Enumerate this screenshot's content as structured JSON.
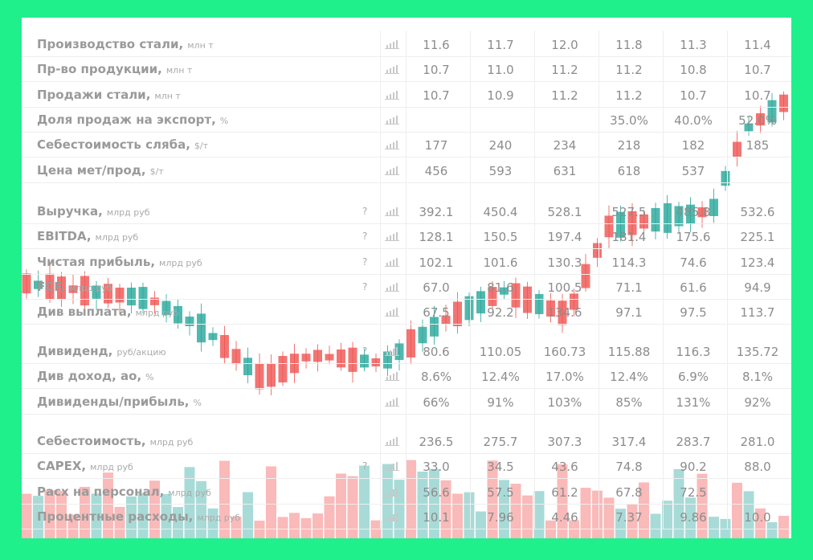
{
  "groups": [
    {
      "rows": [
        {
          "label": "Производство стали,",
          "unit": "млн т",
          "values": [
            "11.6",
            "11.7",
            "12.0",
            "11.8",
            "11.3",
            "11.4"
          ]
        },
        {
          "label": "Пр-во продукции,",
          "unit": "млн т",
          "values": [
            "10.7",
            "11.0",
            "11.2",
            "11.2",
            "10.8",
            "10.7"
          ]
        },
        {
          "label": "Продажи стали,",
          "unit": "млн т",
          "values": [
            "10.7",
            "10.9",
            "11.2",
            "11.2",
            "10.7",
            "10.7"
          ]
        },
        {
          "label": "Доля продаж на экспорт,",
          "unit": "%",
          "values": [
            null,
            null,
            null,
            "35.0%",
            "40.0%",
            "52.0%"
          ]
        },
        {
          "label": "Себестоимость сляба,",
          "unit": "$/т",
          "values": [
            "177",
            "240",
            "234",
            "218",
            "182",
            "185"
          ]
        },
        {
          "label": "Цена мет/прод,",
          "unit": "$/т",
          "values": [
            "456",
            "593",
            "631",
            "618",
            "537",
            null
          ]
        }
      ]
    },
    {
      "rows": [
        {
          "label": "Выручка,",
          "unit": "млрд руб",
          "help": "?",
          "values": [
            "392.1",
            "450.4",
            "528.1",
            "527.5",
            "485.8",
            "532.6"
          ]
        },
        {
          "label": "EBITDA,",
          "unit": "млрд руб",
          "help": "?",
          "values": [
            "128.1",
            "150.5",
            "197.4",
            "181.4",
            "175.6",
            "225.1"
          ]
        },
        {
          "label": "Чистая прибыль,",
          "unit": "млрд руб",
          "help": "?",
          "values": [
            "102.1",
            "101.6",
            "130.3",
            "114.3",
            "74.6",
            "123.4"
          ]
        },
        {
          "label": "FCF,",
          "unit": "млрд руб",
          "help": "?",
          "values": [
            "67.0",
            "81.6",
            "100.5",
            "71.1",
            "61.6",
            "94.9"
          ]
        },
        {
          "label": "Див выплата,",
          "unit": "млрд руб",
          "values": [
            "67.5",
            "92.2",
            "134.6",
            "97.1",
            "97.5",
            "113.7"
          ]
        }
      ]
    },
    {
      "rows": [
        {
          "label": "Дивиденд,",
          "unit": "руб/акцию",
          "help": "?",
          "values": [
            "80.6",
            "110.05",
            "160.73",
            "115.88",
            "116.3",
            "135.72"
          ]
        },
        {
          "label": "Див доход, ао,",
          "unit": "%",
          "values": [
            "8.6%",
            "12.4%",
            "17.0%",
            "12.4%",
            "6.9%",
            "8.1%"
          ]
        },
        {
          "label": "Дивиденды/прибыль,",
          "unit": "%",
          "values": [
            "66%",
            "91%",
            "103%",
            "85%",
            "131%",
            "92%"
          ]
        }
      ]
    },
    {
      "rows": [
        {
          "label": "Себестоимость,",
          "unit": "млрд руб",
          "values": [
            "236.5",
            "275.7",
            "307.3",
            "317.4",
            "283.7",
            "281.0"
          ]
        },
        {
          "label": "CAPEX,",
          "unit": "млрд руб",
          "help": "?",
          "values": [
            "33.0",
            "34.5",
            "43.6",
            "74.8",
            "90.2",
            "88.0"
          ]
        },
        {
          "label": "Расх на персонал,",
          "unit": "млрд руб",
          "values": [
            "56.6",
            "57.5",
            "61.2",
            "67.8",
            "72.5",
            null
          ]
        },
        {
          "label": "Процентные расходы,",
          "unit": "млрд руб",
          "values": [
            "10.1",
            "7.96",
            "4.46",
            "7.37",
            "9.86",
            "10.0"
          ]
        }
      ]
    }
  ]
}
